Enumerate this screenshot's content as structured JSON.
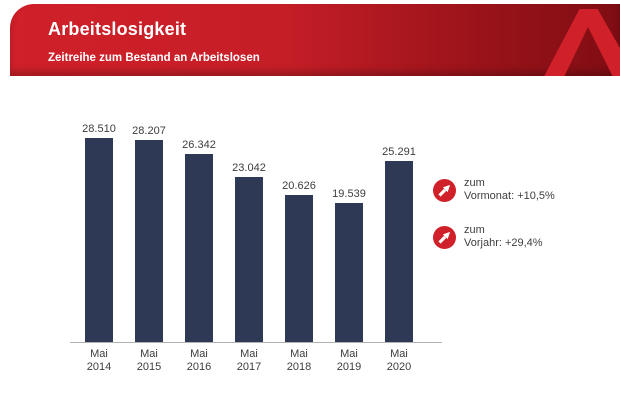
{
  "header": {
    "title": "Arbeitslosigkeit",
    "subtitle": "Zeitreihe zum Bestand an Arbeitslosen",
    "logo": "bundesagentur-fuer-arbeit-a-logo",
    "colors": {
      "banner_red": "#d02029",
      "banner_dark_red": "#7f0d13",
      "logo_red": "#d02029"
    }
  },
  "chart_data": {
    "type": "bar",
    "title": "Zeitreihe zum Bestand an Arbeitslosen",
    "categories": [
      "Mai 2014",
      "Mai 2015",
      "Mai 2016",
      "Mai 2017",
      "Mai 2018",
      "Mai 2019",
      "Mai 2020"
    ],
    "values": [
      28510,
      28207,
      26342,
      23042,
      20626,
      19539,
      25291
    ],
    "value_labels": [
      "28.510",
      "28.207",
      "26.342",
      "23.042",
      "20.626",
      "19.539",
      "25.291"
    ],
    "xlabel": "",
    "ylabel": "",
    "ylim": [
      0,
      30000
    ],
    "grid": false,
    "legend": false,
    "bar_color": "#2e3a55",
    "axis_color": "#b0b0b0"
  },
  "annotations": [
    {
      "icon": "trend-arrow-up-right-icon",
      "icon_color": "#d02029",
      "line1": "zum",
      "line2": "Vormonat: +10,5%"
    },
    {
      "icon": "trend-arrow-up-right-icon",
      "icon_color": "#d02029",
      "line1": "zum",
      "line2": "Vorjahr: +29,4%"
    }
  ]
}
